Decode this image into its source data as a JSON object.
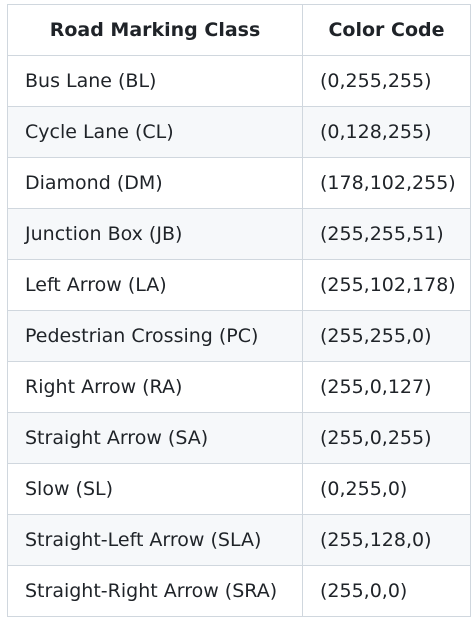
{
  "table": {
    "headers": [
      "Road Marking Class",
      "Color Code"
    ],
    "rows": [
      [
        "Bus Lane (BL)",
        "(0,255,255)"
      ],
      [
        "Cycle Lane (CL)",
        "(0,128,255)"
      ],
      [
        "Diamond (DM)",
        "(178,102,255)"
      ],
      [
        "Junction Box (JB)",
        "(255,255,51)"
      ],
      [
        "Left Arrow (LA)",
        "(255,102,178)"
      ],
      [
        "Pedestrian Crossing (PC)",
        "(255,255,0)"
      ],
      [
        "Right Arrow (RA)",
        "(255,0,127)"
      ],
      [
        "Straight Arrow (SA)",
        "(255,0,255)"
      ],
      [
        "Slow (SL)",
        "(0,255,0)"
      ],
      [
        "Straight-Left Arrow (SLA)",
        "(255,128,0)"
      ],
      [
        "Straight-Right Arrow (SRA)",
        "(255,0,0)"
      ]
    ]
  }
}
